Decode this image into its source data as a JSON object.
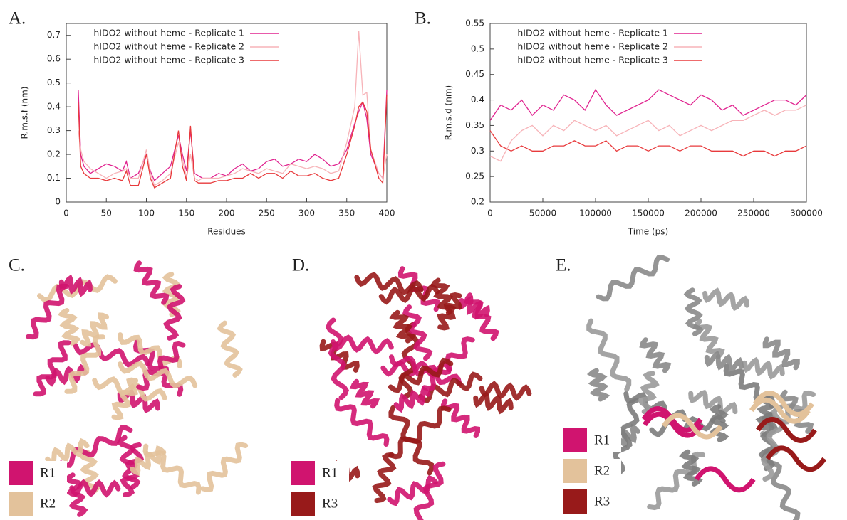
{
  "chart_data": [
    {
      "type": "line",
      "panel_label": "A.",
      "xlabel": "Residues",
      "ylabel": "R.m.s.f (nm)",
      "legend": "upper left",
      "xlim": [
        0,
        400
      ],
      "xticks": [
        0,
        50,
        100,
        150,
        200,
        250,
        300,
        350,
        400
      ],
      "ylim": [
        0,
        0.75
      ],
      "yticks": [
        0,
        0.1,
        0.2,
        0.3,
        0.4,
        0.5,
        0.6,
        0.7
      ],
      "x": [
        15,
        18,
        22,
        30,
        40,
        50,
        60,
        70,
        75,
        80,
        90,
        100,
        105,
        110,
        120,
        130,
        140,
        145,
        150,
        155,
        160,
        165,
        170,
        180,
        190,
        200,
        210,
        220,
        230,
        240,
        250,
        260,
        270,
        280,
        290,
        300,
        310,
        320,
        330,
        340,
        350,
        360,
        365,
        370,
        375,
        380,
        390,
        395,
        400
      ],
      "series": [
        {
          "name": "hIDO2 without heme - Replicate 1",
          "color": "#e0238f",
          "values": [
            0.47,
            0.2,
            0.15,
            0.12,
            0.14,
            0.16,
            0.15,
            0.13,
            0.17,
            0.1,
            0.12,
            0.2,
            0.13,
            0.09,
            0.12,
            0.15,
            0.28,
            0.2,
            0.13,
            0.3,
            0.12,
            0.11,
            0.1,
            0.1,
            0.12,
            0.11,
            0.14,
            0.16,
            0.13,
            0.14,
            0.17,
            0.18,
            0.15,
            0.16,
            0.18,
            0.17,
            0.2,
            0.18,
            0.15,
            0.16,
            0.22,
            0.33,
            0.38,
            0.42,
            0.35,
            0.2,
            0.12,
            0.1,
            0.47
          ]
        },
        {
          "name": "hIDO2 without heme - Replicate 2",
          "color": "#f7b3b8",
          "values": [
            0.3,
            0.22,
            0.17,
            0.14,
            0.12,
            0.1,
            0.12,
            0.13,
            0.14,
            0.1,
            0.1,
            0.22,
            0.12,
            0.07,
            0.09,
            0.12,
            0.25,
            0.18,
            0.1,
            0.2,
            0.1,
            0.09,
            0.1,
            0.1,
            0.1,
            0.11,
            0.12,
            0.14,
            0.13,
            0.12,
            0.14,
            0.13,
            0.12,
            0.16,
            0.15,
            0.14,
            0.15,
            0.14,
            0.12,
            0.13,
            0.25,
            0.4,
            0.72,
            0.45,
            0.46,
            0.22,
            0.12,
            0.1,
            0.2
          ]
        },
        {
          "name": "hIDO2 without heme - Replicate 3",
          "color": "#e83a3c",
          "values": [
            0.42,
            0.15,
            0.12,
            0.1,
            0.1,
            0.09,
            0.1,
            0.09,
            0.13,
            0.07,
            0.07,
            0.2,
            0.1,
            0.06,
            0.08,
            0.1,
            0.3,
            0.15,
            0.09,
            0.32,
            0.09,
            0.08,
            0.08,
            0.08,
            0.09,
            0.09,
            0.1,
            0.1,
            0.12,
            0.1,
            0.12,
            0.12,
            0.1,
            0.13,
            0.11,
            0.11,
            0.12,
            0.1,
            0.09,
            0.1,
            0.2,
            0.32,
            0.4,
            0.42,
            0.38,
            0.22,
            0.1,
            0.08,
            0.45
          ]
        }
      ]
    },
    {
      "type": "line",
      "panel_label": "B.",
      "xlabel": "Time (ps)",
      "ylabel": "R.m.s.d (nm)",
      "legend": "upper left",
      "xlim": [
        0,
        300000
      ],
      "xticks": [
        0,
        50000,
        100000,
        150000,
        200000,
        250000,
        300000
      ],
      "ylim": [
        0.2,
        0.55
      ],
      "yticks": [
        0.2,
        0.25,
        0.3,
        0.35,
        0.4,
        0.45,
        0.5,
        0.55
      ],
      "x": [
        0,
        10000,
        20000,
        30000,
        40000,
        50000,
        60000,
        70000,
        80000,
        90000,
        100000,
        110000,
        120000,
        130000,
        140000,
        150000,
        160000,
        170000,
        180000,
        190000,
        200000,
        210000,
        220000,
        230000,
        240000,
        250000,
        260000,
        270000,
        280000,
        290000,
        300000
      ],
      "series": [
        {
          "name": "hIDO2 without heme - Replicate 1",
          "color": "#e0238f",
          "values": [
            0.36,
            0.39,
            0.38,
            0.4,
            0.37,
            0.39,
            0.38,
            0.41,
            0.4,
            0.38,
            0.42,
            0.39,
            0.37,
            0.38,
            0.39,
            0.4,
            0.42,
            0.41,
            0.4,
            0.39,
            0.41,
            0.4,
            0.38,
            0.39,
            0.37,
            0.38,
            0.39,
            0.4,
            0.4,
            0.39,
            0.41
          ]
        },
        {
          "name": "hIDO2 without heme - Replicate 2",
          "color": "#f7b3b8",
          "values": [
            0.29,
            0.28,
            0.32,
            0.34,
            0.35,
            0.33,
            0.35,
            0.34,
            0.36,
            0.35,
            0.34,
            0.35,
            0.33,
            0.34,
            0.35,
            0.36,
            0.34,
            0.35,
            0.33,
            0.34,
            0.35,
            0.34,
            0.35,
            0.36,
            0.36,
            0.37,
            0.38,
            0.37,
            0.38,
            0.38,
            0.39
          ]
        },
        {
          "name": "hIDO2 without heme - Replicate 3",
          "color": "#e83a3c",
          "values": [
            0.34,
            0.31,
            0.3,
            0.31,
            0.3,
            0.3,
            0.31,
            0.31,
            0.32,
            0.31,
            0.31,
            0.32,
            0.3,
            0.31,
            0.31,
            0.3,
            0.31,
            0.31,
            0.3,
            0.31,
            0.31,
            0.3,
            0.3,
            0.3,
            0.29,
            0.3,
            0.3,
            0.29,
            0.3,
            0.3,
            0.31
          ]
        }
      ]
    }
  ],
  "structures": [
    {
      "panel_label": "C.",
      "legend": [
        {
          "name": "R1",
          "color": "#d0146f"
        },
        {
          "name": "R2",
          "color": "#e3c29b"
        }
      ]
    },
    {
      "panel_label": "D.",
      "legend": [
        {
          "name": "R1",
          "color": "#d0146f"
        },
        {
          "name": "R3",
          "color": "#981a1a"
        }
      ]
    },
    {
      "panel_label": "E.",
      "legend": [
        {
          "name": "R1",
          "color": "#d0146f"
        },
        {
          "name": "R2",
          "color": "#e3c29b"
        },
        {
          "name": "R3",
          "color": "#981a1a"
        }
      ]
    }
  ]
}
